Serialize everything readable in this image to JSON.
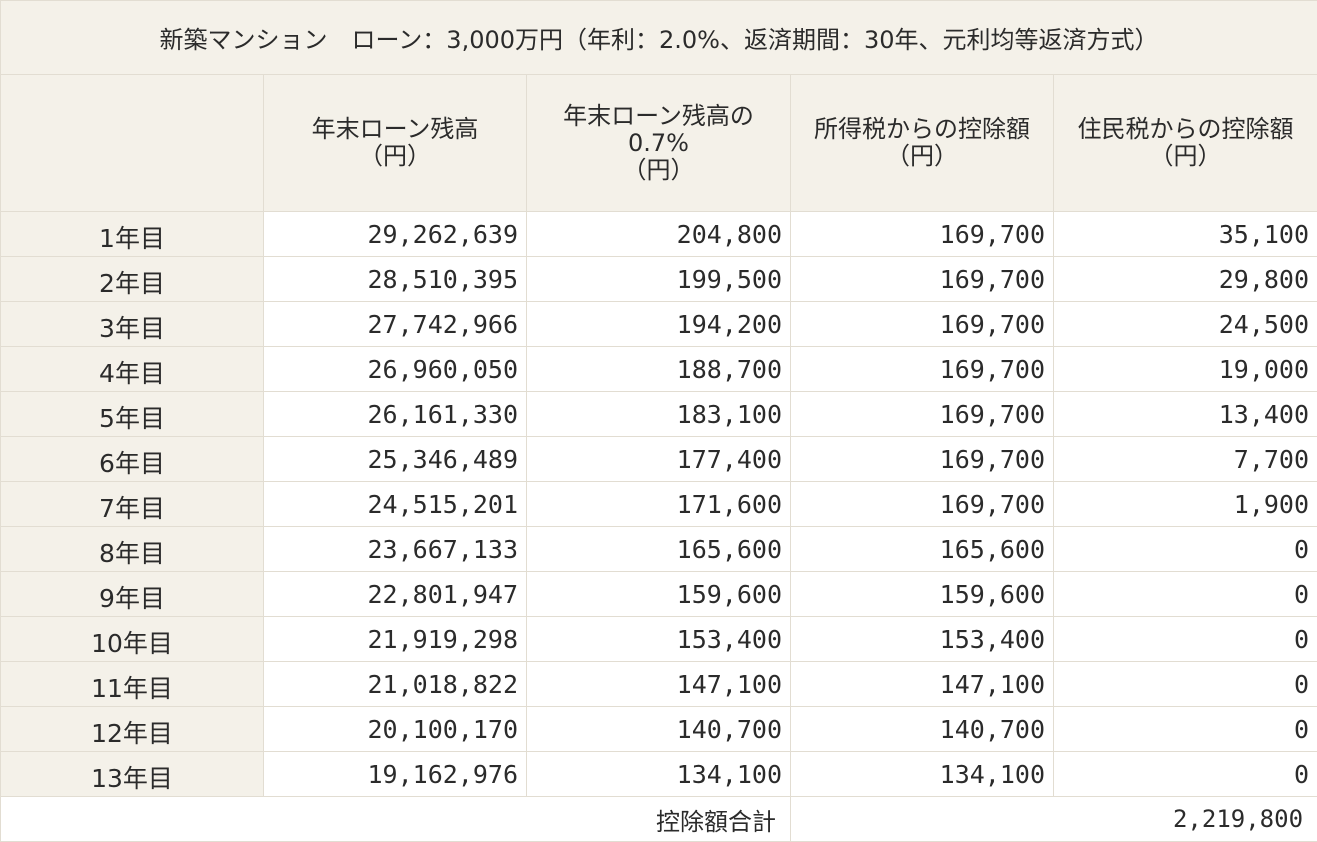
{
  "title": "新築マンション　ローン：3,000万円（年利：2.0%、返済期間：30年、元利均等返済方式）",
  "headers": [
    {
      "lines": [
        "年末ローン残高",
        "（円）"
      ]
    },
    {
      "lines": [
        "年末ローン残高の",
        "0.7%",
        "（円）"
      ]
    },
    {
      "lines": [
        "所得税からの控除額",
        "（円）"
      ]
    },
    {
      "lines": [
        "住民税からの控除額",
        "（円）"
      ]
    }
  ],
  "rows": [
    {
      "label": "1年目",
      "balance": "29,262,639",
      "pct": "204,800",
      "income_tax": "169,700",
      "resident_tax": "35,100"
    },
    {
      "label": "2年目",
      "balance": "28,510,395",
      "pct": "199,500",
      "income_tax": "169,700",
      "resident_tax": "29,800"
    },
    {
      "label": "3年目",
      "balance": "27,742,966",
      "pct": "194,200",
      "income_tax": "169,700",
      "resident_tax": "24,500"
    },
    {
      "label": "4年目",
      "balance": "26,960,050",
      "pct": "188,700",
      "income_tax": "169,700",
      "resident_tax": "19,000"
    },
    {
      "label": "5年目",
      "balance": "26,161,330",
      "pct": "183,100",
      "income_tax": "169,700",
      "resident_tax": "13,400"
    },
    {
      "label": "6年目",
      "balance": "25,346,489",
      "pct": "177,400",
      "income_tax": "169,700",
      "resident_tax": "7,700"
    },
    {
      "label": "7年目",
      "balance": "24,515,201",
      "pct": "171,600",
      "income_tax": "169,700",
      "resident_tax": "1,900"
    },
    {
      "label": "8年目",
      "balance": "23,667,133",
      "pct": "165,600",
      "income_tax": "165,600",
      "resident_tax": "0"
    },
    {
      "label": "9年目",
      "balance": "22,801,947",
      "pct": "159,600",
      "income_tax": "159,600",
      "resident_tax": "0"
    },
    {
      "label": "10年目",
      "balance": "21,919,298",
      "pct": "153,400",
      "income_tax": "153,400",
      "resident_tax": "0"
    },
    {
      "label": "11年目",
      "balance": "21,018,822",
      "pct": "147,100",
      "income_tax": "147,100",
      "resident_tax": "0"
    },
    {
      "label": "12年目",
      "balance": "20,100,170",
      "pct": "140,700",
      "income_tax": "140,700",
      "resident_tax": "0"
    },
    {
      "label": "13年目",
      "balance": "19,162,976",
      "pct": "134,100",
      "income_tax": "134,100",
      "resident_tax": "0"
    }
  ],
  "total": {
    "label": "控除額合計",
    "value": "2,219,800"
  }
}
